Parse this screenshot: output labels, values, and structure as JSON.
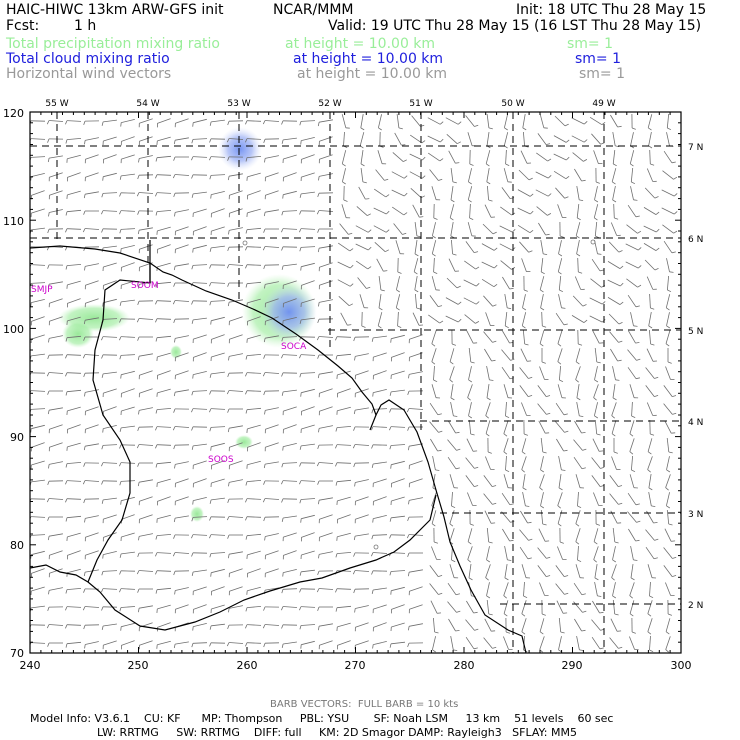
{
  "header": {
    "title_left": "HAIC-HIWC 13km ARW-GFS init",
    "title_center": "NCAR/MMM",
    "init": "Init: 18 UTC Thu 28 May 15",
    "fcst_label": "Fcst:",
    "fcst_value": "1 h",
    "valid": "Valid: 19 UTC Thu 28 May 15 (16 LST Thu 28 May 15)",
    "colors": {
      "precip": "#99ee99",
      "cloud": "#2020dd",
      "wind": "#999999"
    }
  },
  "fields": [
    {
      "name": "Total precipitation mixing ratio",
      "level": "at height = 10.00 km",
      "smooth": "sm= 1"
    },
    {
      "name": "Total cloud mixing ratio",
      "level": "at height = 10.00 km",
      "smooth": "sm= 1"
    },
    {
      "name": "Horizontal wind vectors",
      "level": "at height = 10.00 km",
      "smooth": "sm= 1"
    }
  ],
  "axes": {
    "x_ticks": [
      "240",
      "250",
      "260",
      "270",
      "280",
      "290",
      "300"
    ],
    "y_ticks": [
      "70",
      "80",
      "90",
      "100",
      "110",
      "120"
    ],
    "lon_labels": [
      "55 W",
      "54 W",
      "53 W",
      "52 W",
      "51 W",
      "50 W",
      "49 W"
    ],
    "lat_labels": [
      "7 N",
      "6 N",
      "5 N",
      "4 N",
      "3 N",
      "2 N"
    ]
  },
  "stations": [
    "SMJP",
    "SOOM",
    "SOCA",
    "SOOS"
  ],
  "footer": {
    "barb_note": "BARB VECTORS:  FULL BARB = 10 kts",
    "model_line1": "Model Info: V3.6.1    CU: KF      MP: Thompson     PBL: YSU       SF: Noah LSM     13 km    51 levels    60 sec",
    "model_line2": "LW: RRTMG     SW: RRTMG    DIFF: full     KM: 2D Smagor DAMP: Rayleigh3   SFLAY: MM5"
  }
}
